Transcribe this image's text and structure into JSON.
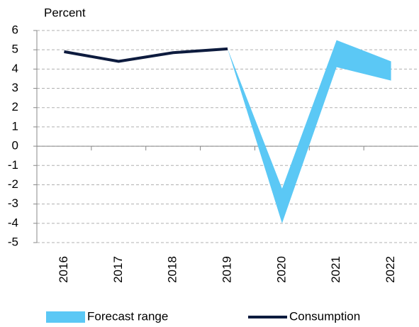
{
  "chart_data": {
    "type": "line",
    "y_label": "Percent",
    "categories": [
      "2016",
      "2017",
      "2018",
      "2019",
      "2020",
      "2021",
      "2022"
    ],
    "series": [
      {
        "name": "Forecast range",
        "color": "#5bc8f5",
        "kind": "band",
        "upper": [
          null,
          null,
          null,
          5.05,
          -2.2,
          5.5,
          4.4
        ],
        "lower": [
          null,
          null,
          null,
          5.05,
          -4.0,
          4.1,
          3.4
        ]
      },
      {
        "name": "Consumption",
        "color": "#0d1b3e",
        "kind": "line",
        "values": [
          4.9,
          4.4,
          4.85,
          5.05,
          null,
          null,
          null
        ]
      }
    ],
    "ylim": [
      -5,
      6
    ],
    "yticks": [
      -5,
      -4,
      -3,
      -2,
      -1,
      0,
      1,
      2,
      3,
      4,
      5,
      6
    ],
    "grid": true,
    "legend": "bottom"
  }
}
